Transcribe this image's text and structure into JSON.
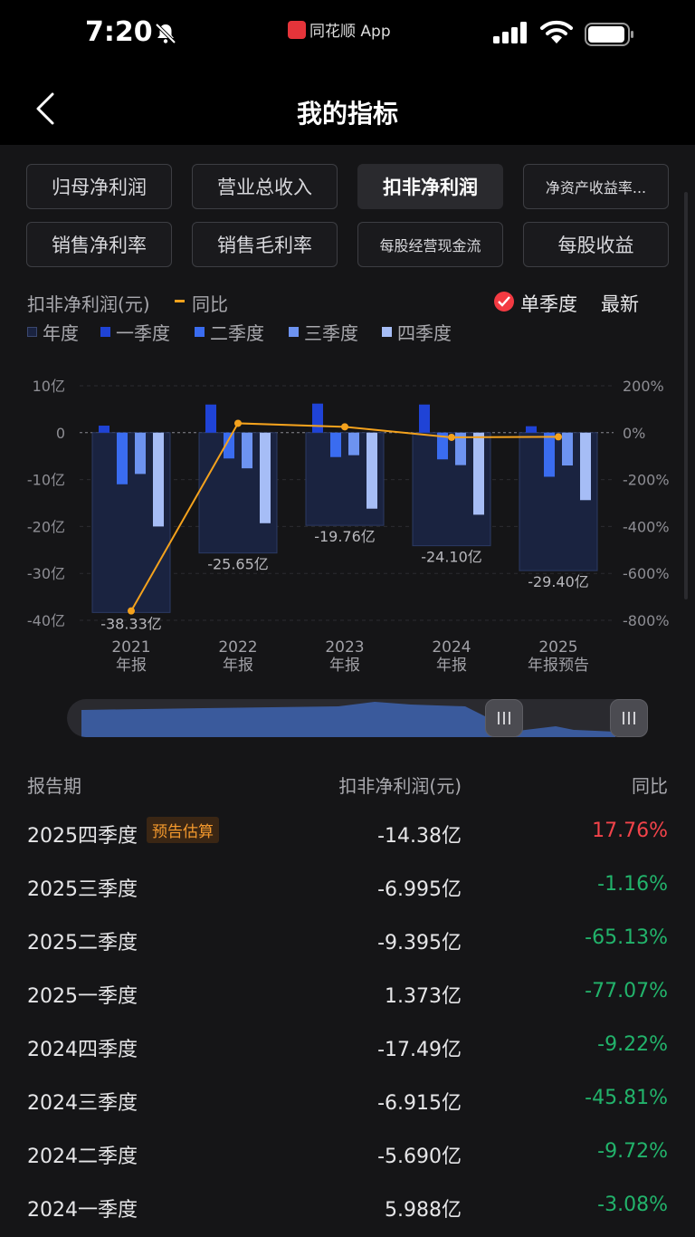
{
  "status_bar": {
    "time": "7:20",
    "app_name": "同花顺 App"
  },
  "header": {
    "title": "我的指标"
  },
  "tabs": [
    {
      "label": "归母净利润",
      "active": false
    },
    {
      "label": "营业总收入",
      "active": false
    },
    {
      "label": "扣非净利润",
      "active": true
    },
    {
      "label": "净资产收益率...",
      "active": false
    },
    {
      "label": "销售净利率",
      "active": false
    },
    {
      "label": "销售毛利率",
      "active": false
    },
    {
      "label": "每股经营现金流",
      "active": false
    },
    {
      "label": "每股收益",
      "active": false
    }
  ],
  "chart_header": {
    "metric_label": "扣非净利润(元)",
    "yoy_label": "同比",
    "single_quarter_label": "单季度",
    "latest_label": "最新"
  },
  "legend": [
    {
      "label": "年度",
      "color": "#1a2340"
    },
    {
      "label": "一季度",
      "color": "#1f43d6"
    },
    {
      "label": "二季度",
      "color": "#3a6cf0"
    },
    {
      "label": "三季度",
      "color": "#6d93f0"
    },
    {
      "label": "四季度",
      "color": "#a6bdf6"
    }
  ],
  "chart_data": {
    "type": "bar",
    "categories": [
      "2021\n年报",
      "2022\n年报",
      "2023\n年报",
      "2024\n年报",
      "2025\n年报预告"
    ],
    "category_lines": [
      [
        "2021",
        "年报"
      ],
      [
        "2022",
        "年报"
      ],
      [
        "2023",
        "年报"
      ],
      [
        "2024",
        "年报"
      ],
      [
        "2025",
        "年报预告"
      ]
    ],
    "annual_values": [
      -38.33,
      -25.65,
      -19.76,
      -24.1,
      -29.4
    ],
    "annual_labels": [
      "-38.33亿",
      "-25.65亿",
      "-19.76亿",
      "-24.10亿",
      "-29.40亿"
    ],
    "series": [
      {
        "name": "一季度",
        "values": [
          1.5,
          6.0,
          6.2,
          6.0,
          1.373
        ]
      },
      {
        "name": "二季度",
        "values": [
          -11.0,
          -5.5,
          -5.2,
          -5.69,
          -9.395
        ]
      },
      {
        "name": "三季度",
        "values": [
          -8.8,
          -7.6,
          -4.8,
          -6.915,
          -6.995
        ]
      },
      {
        "name": "四季度",
        "values": [
          -20.0,
          -19.3,
          -16.2,
          -17.49,
          -14.38
        ]
      }
    ],
    "yoy": {
      "name": "同比",
      "values": [
        -760,
        40,
        25,
        -20,
        -17.76
      ]
    },
    "y_left": {
      "min": -40,
      "max": 10,
      "ticks": [
        10,
        0,
        -10,
        -20,
        -30,
        -40
      ],
      "tick_labels": [
        "10亿",
        "0",
        "-10亿",
        "-20亿",
        "-30亿",
        "-40亿"
      ]
    },
    "y_right": {
      "min": -800,
      "max": 200,
      "ticks": [
        200,
        0,
        -200,
        -400,
        -600,
        -800
      ],
      "tick_labels": [
        "200%",
        "0%",
        "-200%",
        "-400%",
        "-600%",
        "-800%"
      ]
    },
    "colors": {
      "annual": "#1a2340",
      "annual_border": "#2c3a63",
      "q1": "#1f43d6",
      "q2": "#3a6cf0",
      "q3": "#6d93f0",
      "q4": "#a6bdf6",
      "yoy": "#f4a21d"
    }
  },
  "table": {
    "headers": {
      "period": "报告期",
      "value": "扣非净利润(元)",
      "yoy": "同比"
    },
    "rows": [
      {
        "period": "2025四季度",
        "tag": "预告估算",
        "value": "-14.38亿",
        "yoy": "17.76%",
        "direction": "up"
      },
      {
        "period": "2025三季度",
        "tag": "",
        "value": "-6.995亿",
        "yoy": "-1.16%",
        "direction": "down"
      },
      {
        "period": "2025二季度",
        "tag": "",
        "value": "-9.395亿",
        "yoy": "-65.13%",
        "direction": "down"
      },
      {
        "period": "2025一季度",
        "tag": "",
        "value": "1.373亿",
        "yoy": "-77.07%",
        "direction": "down"
      },
      {
        "period": "2024四季度",
        "tag": "",
        "value": "-17.49亿",
        "yoy": "-9.22%",
        "direction": "down"
      },
      {
        "period": "2024三季度",
        "tag": "",
        "value": "-6.915亿",
        "yoy": "-45.81%",
        "direction": "down"
      },
      {
        "period": "2024二季度",
        "tag": "",
        "value": "-5.690亿",
        "yoy": "-9.72%",
        "direction": "down"
      },
      {
        "period": "2024一季度",
        "tag": "",
        "value": "5.988亿",
        "yoy": "-3.08%",
        "direction": "down"
      }
    ]
  }
}
